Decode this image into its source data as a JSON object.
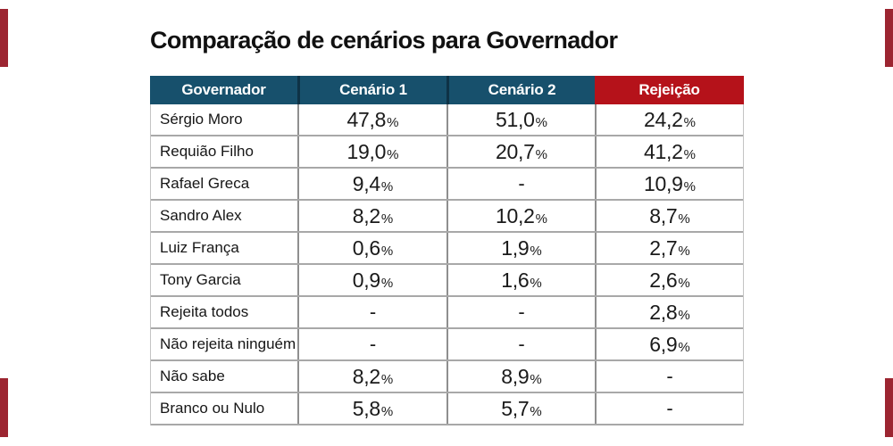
{
  "title": "Comparação de cenários para Governador",
  "colors": {
    "header_blue": "#17506c",
    "header_red": "#b5121a",
    "header_divider": "#0e3246",
    "edge_red": "#9c2531",
    "background": "#ffffff"
  },
  "table": {
    "percent_suffix": "%",
    "dash": "-",
    "columns": [
      {
        "label": "Governador",
        "style": "blue"
      },
      {
        "label": "Cenário 1",
        "style": "blue"
      },
      {
        "label": "Cenário 2",
        "style": "blue"
      },
      {
        "label": "Rejeição",
        "style": "red"
      }
    ],
    "rows": [
      {
        "name": "Sérgio Moro",
        "c1": "47,8",
        "c2": "51,0",
        "rej": "24,2"
      },
      {
        "name": "Requião Filho",
        "c1": "19,0",
        "c2": "20,7",
        "rej": "41,2"
      },
      {
        "name": "Rafael Greca",
        "c1": "9,4",
        "c2": "-",
        "rej": "10,9"
      },
      {
        "name": "Sandro Alex",
        "c1": "8,2",
        "c2": "10,2",
        "rej": "8,7"
      },
      {
        "name": "Luiz França",
        "c1": "0,6",
        "c2": "1,9",
        "rej": "2,7"
      },
      {
        "name": "Tony Garcia",
        "c1": "0,9",
        "c2": "1,6",
        "rej": "2,6"
      },
      {
        "name": "Rejeita todos",
        "c1": "-",
        "c2": "-",
        "rej": "2,8"
      },
      {
        "name": "Não rejeita ninguém",
        "c1": "-",
        "c2": "-",
        "rej": "6,9"
      },
      {
        "name": "Não sabe",
        "c1": "8,2",
        "c2": "8,9",
        "rej": "-"
      },
      {
        "name": "Branco ou Nulo",
        "c1": "5,8",
        "c2": "5,7",
        "rej": "-"
      }
    ]
  },
  "chart_data": {
    "type": "table",
    "title": "Comparação de cenários para Governador",
    "columns": [
      "Governador",
      "Cenário 1",
      "Cenário 2",
      "Rejeição"
    ],
    "rows": [
      [
        "Sérgio Moro",
        "47,8%",
        "51,0%",
        "24,2%"
      ],
      [
        "Requião Filho",
        "19,0%",
        "20,7%",
        "41,2%"
      ],
      [
        "Rafael Greca",
        "9,4%",
        "-",
        "10,9%"
      ],
      [
        "Sandro Alex",
        "8,2%",
        "10,2%",
        "8,7%"
      ],
      [
        "Luiz França",
        "0,6%",
        "1,9%",
        "2,7%"
      ],
      [
        "Tony Garcia",
        "0,9%",
        "1,6%",
        "2,6%"
      ],
      [
        "Rejeita todos",
        "-",
        "-",
        "2,8%"
      ],
      [
        "Não rejeita ninguém",
        "-",
        "-",
        "6,9%"
      ],
      [
        "Não sabe",
        "8,2%",
        "8,9%",
        "-"
      ],
      [
        "Branco ou Nulo",
        "5,8%",
        "5,7%",
        "-"
      ]
    ]
  }
}
